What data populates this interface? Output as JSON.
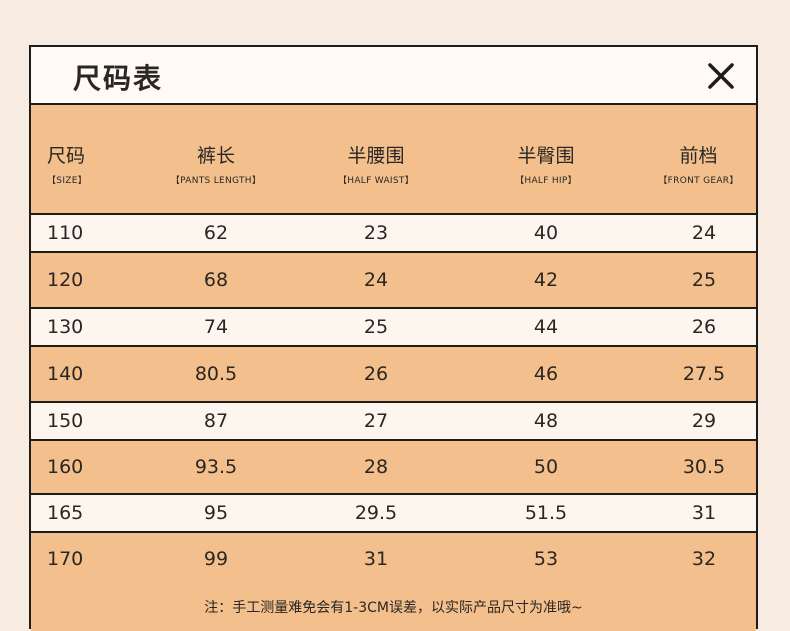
{
  "title": "尺码表",
  "close_icon": "close-icon",
  "columns": [
    {
      "zh": "尺码",
      "en": "【SIZE】"
    },
    {
      "zh": "裤长",
      "en": "【PANTS LENGTH】"
    },
    {
      "zh": "半腰围",
      "en": "【HALF WAIST】"
    },
    {
      "zh": "半臀围",
      "en": "【HALF HIP】"
    },
    {
      "zh": "前档",
      "en": "【FRONT GEAR】"
    }
  ],
  "rows": [
    [
      "110",
      "62",
      "23",
      "40",
      "24"
    ],
    [
      "120",
      "68",
      "24",
      "42",
      "25"
    ],
    [
      "130",
      "74",
      "25",
      "44",
      "26"
    ],
    [
      "140",
      "80.5",
      "26",
      "46",
      "27.5"
    ],
    [
      "150",
      "87",
      "27",
      "48",
      "29"
    ],
    [
      "160",
      "93.5",
      "28",
      "50",
      "30.5"
    ],
    [
      "165",
      "95",
      "29.5",
      "51.5",
      "31"
    ],
    [
      "170",
      "99",
      "31",
      "53",
      "32"
    ]
  ],
  "note": "注：手工测量难免会有1-3CM误差，以实际产品尺寸为准哦~",
  "colors": {
    "accent": "#f3c08d",
    "light_row": "#fdf6ef",
    "background": "#f8ebe2",
    "border": "#1e1c1a"
  }
}
